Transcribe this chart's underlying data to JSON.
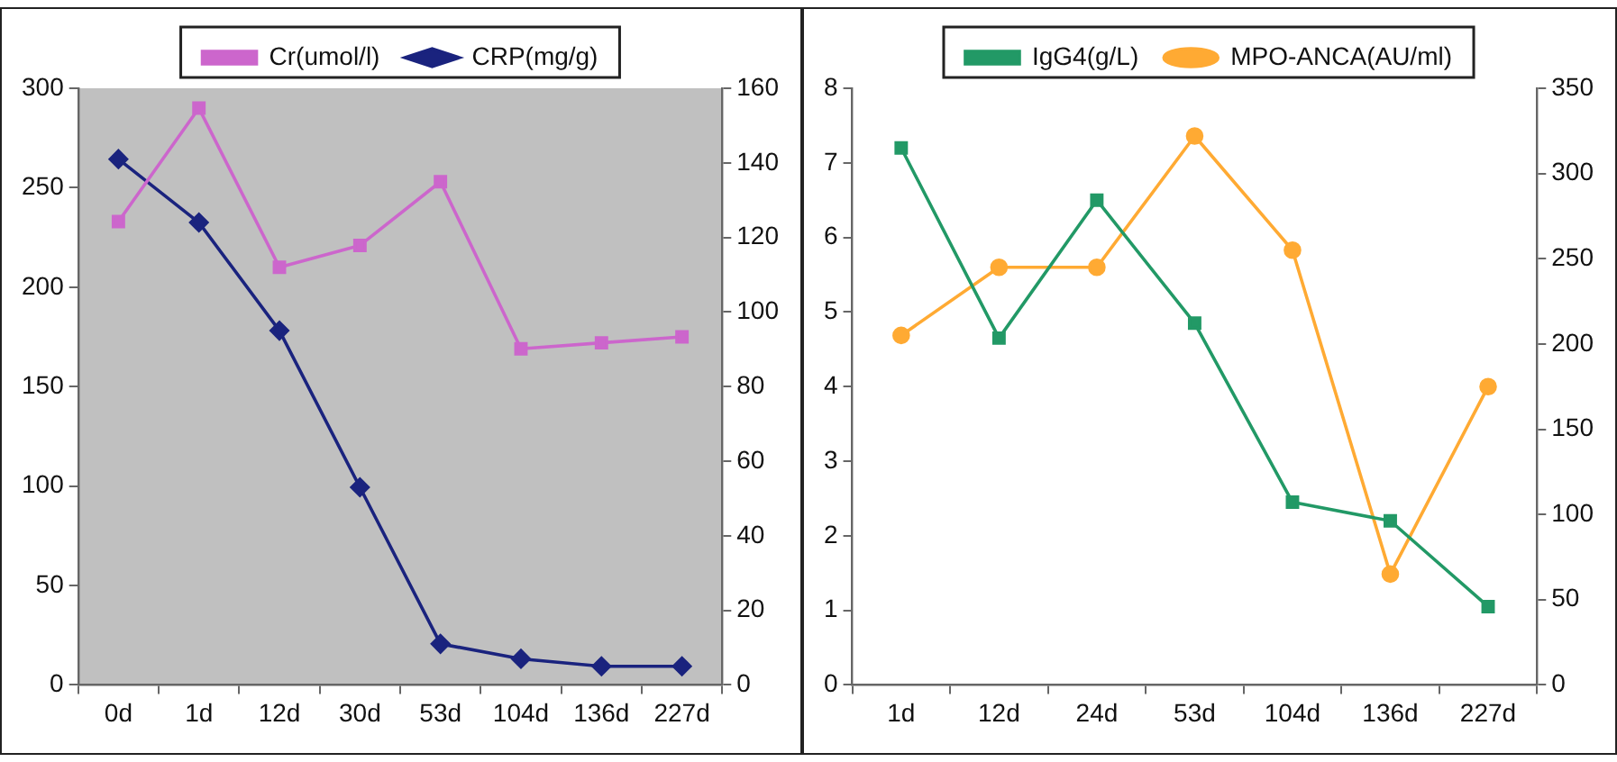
{
  "chart_data": [
    {
      "type": "line",
      "categories": [
        "0d",
        "1d",
        "12d",
        "30d",
        "53d",
        "104d",
        "136d",
        "227d"
      ],
      "series": [
        {
          "name": "Cr(umol/l)",
          "color": "#cc66cc",
          "marker": "square",
          "values": [
            233,
            290,
            210,
            221,
            253,
            169,
            172,
            175
          ]
        },
        {
          "name": "CRP(mg/g)",
          "color": "#1a237e",
          "marker": "diamond",
          "axis": "y2",
          "values": [
            141,
            124,
            95,
            53,
            11,
            7,
            5,
            5
          ]
        }
      ],
      "ylim": [
        0,
        300
      ],
      "yticks": [
        0,
        50,
        100,
        150,
        200,
        250,
        300
      ],
      "y2lim": [
        0,
        160
      ],
      "y2ticks": [
        0,
        20,
        40,
        60,
        80,
        100,
        120,
        140,
        160
      ],
      "legend": "top",
      "grid": false
    },
    {
      "type": "line",
      "categories": [
        "1d",
        "12d",
        "24d",
        "53d",
        "104d",
        "136d",
        "227d"
      ],
      "series": [
        {
          "name": "IgG4(g/L)",
          "color": "#229966",
          "marker": "square",
          "values": [
            7.2,
            4.65,
            6.5,
            4.85,
            2.45,
            2.2,
            1.05
          ]
        },
        {
          "name": "MPO-ANCA(AU/ml)",
          "color": "#ffaa33",
          "marker": "circle",
          "axis": "y2",
          "values": [
            205,
            245,
            245,
            322,
            255,
            65,
            175
          ]
        }
      ],
      "ylim": [
        0,
        8
      ],
      "yticks": [
        0,
        1,
        2,
        3,
        4,
        5,
        6,
        7,
        8
      ],
      "y2lim": [
        0,
        350
      ],
      "y2ticks": [
        0,
        50,
        100,
        150,
        200,
        250,
        300,
        350
      ],
      "legend": "top",
      "grid": false
    }
  ]
}
